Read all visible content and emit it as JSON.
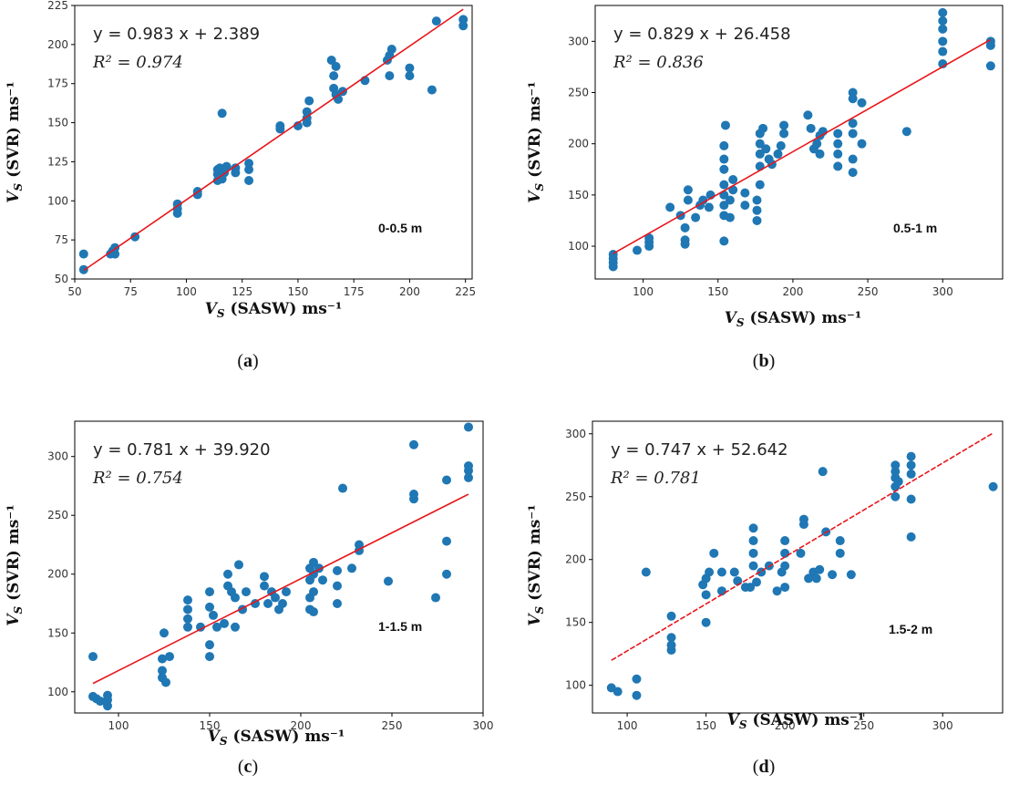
{
  "chart_data": [
    {
      "type": "scatter",
      "panel": "a",
      "caption_letter": "a",
      "equation_text": "y = 0.983 x + 2.389",
      "r2_text": "R² = 0.974",
      "fit": {
        "slope": 0.983,
        "intercept": 2.389
      },
      "annotation": "0-0.5 m",
      "xlabel": "V_S (SASW) ms⁻¹",
      "ylabel": "V_S (SVR) ms⁻¹",
      "xlim": [
        50,
        228
      ],
      "ylim": [
        50,
        225
      ],
      "xticks": [
        "50",
        "75",
        "100",
        "125",
        "150",
        "175",
        "200",
        "225"
      ],
      "yticks": [
        "50",
        "75",
        "100",
        "125",
        "150",
        "175",
        "200",
        "225"
      ],
      "points": [
        [
          54,
          56
        ],
        [
          54,
          66
        ],
        [
          66,
          66
        ],
        [
          67,
          68
        ],
        [
          68,
          66
        ],
        [
          68,
          70
        ],
        [
          77,
          77
        ],
        [
          96,
          92
        ],
        [
          96,
          95
        ],
        [
          96,
          98
        ],
        [
          105,
          104
        ],
        [
          105,
          106
        ],
        [
          114,
          113
        ],
        [
          114,
          117
        ],
        [
          114,
          120
        ],
        [
          115,
          121
        ],
        [
          116,
          156
        ],
        [
          116,
          114
        ],
        [
          117,
          118
        ],
        [
          118,
          122
        ],
        [
          122,
          118
        ],
        [
          122,
          121
        ],
        [
          128,
          113
        ],
        [
          128,
          120
        ],
        [
          128,
          124
        ],
        [
          142,
          146
        ],
        [
          142,
          148
        ],
        [
          150,
          148
        ],
        [
          154,
          150
        ],
        [
          154,
          153
        ],
        [
          154,
          157
        ],
        [
          155,
          164
        ],
        [
          166,
          172
        ],
        [
          167,
          168
        ],
        [
          168,
          165
        ],
        [
          170,
          170
        ],
        [
          166,
          180
        ],
        [
          167,
          186
        ],
        [
          165,
          190
        ],
        [
          180,
          177
        ],
        [
          190,
          190
        ],
        [
          191,
          180
        ],
        [
          191,
          193
        ],
        [
          192,
          197
        ],
        [
          200,
          180
        ],
        [
          200,
          185
        ],
        [
          210,
          171
        ],
        [
          212,
          215
        ],
        [
          224,
          212
        ],
        [
          224,
          216
        ]
      ]
    },
    {
      "type": "scatter",
      "panel": "b",
      "caption_letter": "b",
      "equation_text": "y = 0.829 x + 26.458",
      "r2_text": "R² = 0.836",
      "fit": {
        "slope": 0.829,
        "intercept": 26.458
      },
      "annotation": "0.5-1 m",
      "xlabel": "V_S (SASW) ms⁻¹",
      "ylabel": "V_S (SVR) ms⁻¹",
      "xlim": [
        68,
        340
      ],
      "ylim": [
        68,
        335
      ],
      "xticks": [
        "100",
        "150",
        "200",
        "250",
        "300"
      ],
      "yticks": [
        "100",
        "150",
        "200",
        "250",
        "300"
      ],
      "points": [
        [
          80,
          80
        ],
        [
          80,
          84
        ],
        [
          80,
          88
        ],
        [
          80,
          92
        ],
        [
          96,
          96
        ],
        [
          104,
          100
        ],
        [
          104,
          104
        ],
        [
          104,
          108
        ],
        [
          118,
          138
        ],
        [
          125,
          130
        ],
        [
          128,
          102
        ],
        [
          128,
          106
        ],
        [
          128,
          118
        ],
        [
          130,
          145
        ],
        [
          130,
          155
        ],
        [
          135,
          128
        ],
        [
          138,
          140
        ],
        [
          140,
          145
        ],
        [
          144,
          138
        ],
        [
          145,
          150
        ],
        [
          154,
          105
        ],
        [
          154,
          130
        ],
        [
          154,
          140
        ],
        [
          154,
          150
        ],
        [
          154,
          160
        ],
        [
          154,
          175
        ],
        [
          154,
          185
        ],
        [
          154,
          198
        ],
        [
          155,
          218
        ],
        [
          158,
          128
        ],
        [
          158,
          145
        ],
        [
          160,
          155
        ],
        [
          160,
          165
        ],
        [
          168,
          140
        ],
        [
          168,
          152
        ],
        [
          176,
          125
        ],
        [
          176,
          135
        ],
        [
          176,
          145
        ],
        [
          178,
          160
        ],
        [
          178,
          178
        ],
        [
          178,
          190
        ],
        [
          178,
          200
        ],
        [
          178,
          210
        ],
        [
          180,
          215
        ],
        [
          182,
          195
        ],
        [
          184,
          185
        ],
        [
          186,
          180
        ],
        [
          190,
          190
        ],
        [
          192,
          198
        ],
        [
          194,
          210
        ],
        [
          194,
          218
        ],
        [
          210,
          228
        ],
        [
          212,
          215
        ],
        [
          214,
          195
        ],
        [
          216,
          200
        ],
        [
          218,
          190
        ],
        [
          218,
          208
        ],
        [
          220,
          212
        ],
        [
          230,
          178
        ],
        [
          230,
          190
        ],
        [
          230,
          200
        ],
        [
          230,
          210
        ],
        [
          240,
          172
        ],
        [
          240,
          185
        ],
        [
          240,
          210
        ],
        [
          240,
          220
        ],
        [
          240,
          244
        ],
        [
          240,
          250
        ],
        [
          246,
          240
        ],
        [
          246,
          200
        ],
        [
          276,
          212
        ],
        [
          300,
          278
        ],
        [
          300,
          290
        ],
        [
          300,
          300
        ],
        [
          300,
          312
        ],
        [
          300,
          320
        ],
        [
          300,
          328
        ],
        [
          332,
          276
        ],
        [
          332,
          296
        ],
        [
          332,
          300
        ]
      ]
    },
    {
      "type": "scatter",
      "panel": "c",
      "caption_letter": "c",
      "equation_text": "y = 0.781 x + 39.920",
      "r2_text": "R² = 0.754",
      "fit": {
        "slope": 0.781,
        "intercept": 39.92
      },
      "annotation": "1-1.5 m",
      "xlabel": "V_S (SASW) ms⁻¹",
      "ylabel": "V_S (SVR) ms⁻¹",
      "xlim": [
        76,
        300
      ],
      "ylim": [
        82,
        330
      ],
      "xticks": [
        "100",
        "150",
        "200",
        "250",
        "300"
      ],
      "yticks": [
        "100",
        "150",
        "200",
        "250",
        "300"
      ],
      "points": [
        [
          86,
          130
        ],
        [
          86,
          96
        ],
        [
          88,
          94
        ],
        [
          90,
          92
        ],
        [
          94,
          88
        ],
        [
          94,
          93
        ],
        [
          94,
          97
        ],
        [
          124,
          112
        ],
        [
          124,
          118
        ],
        [
          124,
          128
        ],
        [
          125,
          150
        ],
        [
          126,
          108
        ],
        [
          128,
          130
        ],
        [
          138,
          155
        ],
        [
          138,
          162
        ],
        [
          138,
          170
        ],
        [
          138,
          178
        ],
        [
          145,
          155
        ],
        [
          150,
          130
        ],
        [
          150,
          140
        ],
        [
          150,
          172
        ],
        [
          150,
          185
        ],
        [
          152,
          165
        ],
        [
          154,
          155
        ],
        [
          158,
          158
        ],
        [
          160,
          190
        ],
        [
          160,
          200
        ],
        [
          162,
          185
        ],
        [
          164,
          155
        ],
        [
          164,
          180
        ],
        [
          166,
          208
        ],
        [
          168,
          170
        ],
        [
          170,
          185
        ],
        [
          175,
          175
        ],
        [
          180,
          190
        ],
        [
          180,
          198
        ],
        [
          182,
          175
        ],
        [
          184,
          185
        ],
        [
          186,
          180
        ],
        [
          188,
          170
        ],
        [
          190,
          175
        ],
        [
          192,
          185
        ],
        [
          205,
          170
        ],
        [
          205,
          180
        ],
        [
          205,
          195
        ],
        [
          205,
          205
        ],
        [
          207,
          168
        ],
        [
          207,
          185
        ],
        [
          207,
          200
        ],
        [
          207,
          210
        ],
        [
          210,
          205
        ],
        [
          212,
          195
        ],
        [
          220,
          175
        ],
        [
          220,
          190
        ],
        [
          220,
          203
        ],
        [
          223,
          273
        ],
        [
          228,
          205
        ],
        [
          232,
          225
        ],
        [
          232,
          220
        ],
        [
          248,
          194
        ],
        [
          262,
          264
        ],
        [
          262,
          268
        ],
        [
          262,
          310
        ],
        [
          274,
          180
        ],
        [
          280,
          200
        ],
        [
          280,
          228
        ],
        [
          280,
          280
        ],
        [
          292,
          282
        ],
        [
          292,
          288
        ],
        [
          292,
          292
        ],
        [
          292,
          325
        ]
      ]
    },
    {
      "type": "scatter",
      "panel": "d",
      "caption_letter": "d",
      "equation_text": "y = 0.747 x + 52.642",
      "r2_text": "R² = 0.781",
      "fit": {
        "slope": 0.747,
        "intercept": 52.642
      },
      "annotation": "1.5-2 m",
      "xlabel": "V_S (SASW) ms⁻¹",
      "ylabel": "V_S (SVR) ms⁻¹",
      "xlim": [
        78,
        338
      ],
      "ylim": [
        78,
        310
      ],
      "xticks": [
        "100",
        "150",
        "200",
        "250",
        "300"
      ],
      "yticks": [
        "100",
        "150",
        "200",
        "250",
        "300"
      ],
      "points": [
        [
          90,
          98
        ],
        [
          94,
          95
        ],
        [
          106,
          92
        ],
        [
          106,
          105
        ],
        [
          112,
          190
        ],
        [
          128,
          128
        ],
        [
          128,
          132
        ],
        [
          128,
          138
        ],
        [
          128,
          155
        ],
        [
          148,
          180
        ],
        [
          150,
          150
        ],
        [
          150,
          172
        ],
        [
          150,
          185
        ],
        [
          152,
          190
        ],
        [
          155,
          205
        ],
        [
          160,
          175
        ],
        [
          160,
          190
        ],
        [
          168,
          190
        ],
        [
          170,
          183
        ],
        [
          175,
          178
        ],
        [
          178,
          178
        ],
        [
          180,
          195
        ],
        [
          180,
          205
        ],
        [
          180,
          215
        ],
        [
          180,
          225
        ],
        [
          182,
          182
        ],
        [
          185,
          190
        ],
        [
          190,
          195
        ],
        [
          195,
          175
        ],
        [
          198,
          190
        ],
        [
          200,
          178
        ],
        [
          200,
          195
        ],
        [
          200,
          205
        ],
        [
          200,
          215
        ],
        [
          210,
          205
        ],
        [
          212,
          228
        ],
        [
          212,
          232
        ],
        [
          215,
          185
        ],
        [
          218,
          190
        ],
        [
          220,
          185
        ],
        [
          222,
          192
        ],
        [
          224,
          270
        ],
        [
          226,
          222
        ],
        [
          230,
          188
        ],
        [
          235,
          205
        ],
        [
          235,
          215
        ],
        [
          242,
          188
        ],
        [
          270,
          250
        ],
        [
          270,
          258
        ],
        [
          270,
          265
        ],
        [
          270,
          270
        ],
        [
          270,
          275
        ],
        [
          272,
          262
        ],
        [
          280,
          218
        ],
        [
          280,
          248
        ],
        [
          280,
          268
        ],
        [
          280,
          275
        ],
        [
          280,
          282
        ],
        [
          332,
          258
        ]
      ]
    }
  ]
}
